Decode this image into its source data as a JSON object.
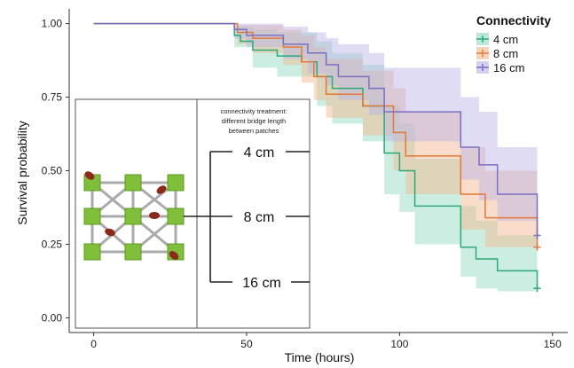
{
  "chart_data": {
    "type": "line",
    "step": true,
    "xlabel": "Time (hours)",
    "ylabel": "Survival probability",
    "xlim": [
      -8,
      155
    ],
    "ylim": [
      -0.05,
      1.05
    ],
    "xticks": [
      0,
      50,
      100,
      150
    ],
    "yticks": [
      0.0,
      0.25,
      0.5,
      0.75,
      1.0
    ],
    "ytick_labels": [
      "0.00",
      "0.25",
      "0.50",
      "0.75",
      "1.00"
    ],
    "legend": {
      "title": "Connectivity",
      "position": "top-right"
    },
    "series": [
      {
        "name": "4 cm",
        "color": "#2ca87a",
        "band_color": "#8fd9bf",
        "points": [
          [
            0,
            1.0
          ],
          [
            46,
            1.0
          ],
          [
            46,
            0.96
          ],
          [
            48,
            0.96
          ],
          [
            48,
            0.94
          ],
          [
            52,
            0.94
          ],
          [
            52,
            0.91
          ],
          [
            60,
            0.91
          ],
          [
            60,
            0.89
          ],
          [
            68,
            0.89
          ],
          [
            68,
            0.87
          ],
          [
            73,
            0.87
          ],
          [
            73,
            0.82
          ],
          [
            78,
            0.82
          ],
          [
            78,
            0.78
          ],
          [
            88,
            0.78
          ],
          [
            88,
            0.72
          ],
          [
            95,
            0.72
          ],
          [
            95,
            0.56
          ],
          [
            100,
            0.56
          ],
          [
            100,
            0.5
          ],
          [
            105,
            0.5
          ],
          [
            105,
            0.38
          ],
          [
            120,
            0.38
          ],
          [
            120,
            0.24
          ],
          [
            125,
            0.24
          ],
          [
            125,
            0.2
          ],
          [
            132,
            0.2
          ],
          [
            132,
            0.16
          ],
          [
            145,
            0.16
          ],
          [
            145,
            0.1
          ]
        ],
        "upper": [
          [
            0,
            1.0
          ],
          [
            46,
            1.0
          ],
          [
            46,
            0.99
          ],
          [
            52,
            0.99
          ],
          [
            52,
            0.98
          ],
          [
            60,
            0.98
          ],
          [
            60,
            0.97
          ],
          [
            73,
            0.97
          ],
          [
            73,
            0.94
          ],
          [
            78,
            0.94
          ],
          [
            78,
            0.9
          ],
          [
            88,
            0.9
          ],
          [
            88,
            0.86
          ],
          [
            95,
            0.86
          ],
          [
            95,
            0.72
          ],
          [
            100,
            0.72
          ],
          [
            100,
            0.66
          ],
          [
            105,
            0.66
          ],
          [
            105,
            0.54
          ],
          [
            120,
            0.54
          ],
          [
            120,
            0.38
          ],
          [
            125,
            0.38
          ],
          [
            125,
            0.33
          ],
          [
            132,
            0.33
          ],
          [
            132,
            0.28
          ],
          [
            145,
            0.28
          ]
        ],
        "lower": [
          [
            0,
            1.0
          ],
          [
            46,
            1.0
          ],
          [
            46,
            0.92
          ],
          [
            52,
            0.92
          ],
          [
            52,
            0.85
          ],
          [
            60,
            0.85
          ],
          [
            60,
            0.82
          ],
          [
            73,
            0.82
          ],
          [
            73,
            0.72
          ],
          [
            78,
            0.72
          ],
          [
            78,
            0.66
          ],
          [
            88,
            0.66
          ],
          [
            88,
            0.6
          ],
          [
            95,
            0.6
          ],
          [
            95,
            0.42
          ],
          [
            100,
            0.42
          ],
          [
            100,
            0.36
          ],
          [
            105,
            0.36
          ],
          [
            105,
            0.25
          ],
          [
            120,
            0.25
          ],
          [
            120,
            0.14
          ],
          [
            125,
            0.14
          ],
          [
            125,
            0.1
          ],
          [
            132,
            0.1
          ],
          [
            132,
            0.09
          ],
          [
            145,
            0.09
          ]
        ],
        "end_marker": [
          145,
          0.1
        ]
      },
      {
        "name": "8 cm",
        "color": "#e07a3a",
        "band_color": "#f2b48a",
        "points": [
          [
            0,
            1.0
          ],
          [
            47,
            1.0
          ],
          [
            47,
            0.97
          ],
          [
            52,
            0.97
          ],
          [
            52,
            0.95
          ],
          [
            62,
            0.95
          ],
          [
            62,
            0.92
          ],
          [
            68,
            0.92
          ],
          [
            68,
            0.87
          ],
          [
            72,
            0.87
          ],
          [
            72,
            0.82
          ],
          [
            76,
            0.82
          ],
          [
            76,
            0.76
          ],
          [
            88,
            0.76
          ],
          [
            88,
            0.72
          ],
          [
            98,
            0.72
          ],
          [
            98,
            0.63
          ],
          [
            102,
            0.63
          ],
          [
            102,
            0.55
          ],
          [
            120,
            0.55
          ],
          [
            120,
            0.42
          ],
          [
            128,
            0.42
          ],
          [
            128,
            0.34
          ],
          [
            145,
            0.34
          ],
          [
            145,
            0.24
          ]
        ],
        "upper": [
          [
            0,
            1.0
          ],
          [
            47,
            1.0
          ],
          [
            47,
            0.995
          ],
          [
            62,
            0.995
          ],
          [
            62,
            0.98
          ],
          [
            68,
            0.98
          ],
          [
            68,
            0.96
          ],
          [
            72,
            0.96
          ],
          [
            72,
            0.92
          ],
          [
            76,
            0.92
          ],
          [
            76,
            0.88
          ],
          [
            88,
            0.88
          ],
          [
            88,
            0.84
          ],
          [
            98,
            0.84
          ],
          [
            98,
            0.78
          ],
          [
            102,
            0.78
          ],
          [
            102,
            0.7
          ],
          [
            120,
            0.7
          ],
          [
            120,
            0.58
          ],
          [
            128,
            0.58
          ],
          [
            128,
            0.5
          ],
          [
            145,
            0.5
          ]
        ],
        "lower": [
          [
            0,
            1.0
          ],
          [
            47,
            1.0
          ],
          [
            47,
            0.93
          ],
          [
            52,
            0.93
          ],
          [
            52,
            0.9
          ],
          [
            62,
            0.9
          ],
          [
            62,
            0.86
          ],
          [
            68,
            0.86
          ],
          [
            68,
            0.8
          ],
          [
            72,
            0.8
          ],
          [
            72,
            0.74
          ],
          [
            76,
            0.74
          ],
          [
            76,
            0.68
          ],
          [
            88,
            0.68
          ],
          [
            88,
            0.62
          ],
          [
            98,
            0.62
          ],
          [
            98,
            0.5
          ],
          [
            102,
            0.5
          ],
          [
            102,
            0.42
          ],
          [
            120,
            0.42
          ],
          [
            120,
            0.3
          ],
          [
            128,
            0.3
          ],
          [
            128,
            0.24
          ],
          [
            145,
            0.24
          ]
        ],
        "end_marker": [
          145,
          0.24
        ]
      },
      {
        "name": "16 cm",
        "color": "#7b6fc4",
        "band_color": "#b9b1e6",
        "points": [
          [
            0,
            1.0
          ],
          [
            46,
            1.0
          ],
          [
            46,
            0.98
          ],
          [
            50,
            0.98
          ],
          [
            50,
            0.96
          ],
          [
            62,
            0.96
          ],
          [
            62,
            0.93
          ],
          [
            70,
            0.93
          ],
          [
            70,
            0.9
          ],
          [
            76,
            0.9
          ],
          [
            76,
            0.86
          ],
          [
            80,
            0.86
          ],
          [
            80,
            0.82
          ],
          [
            90,
            0.82
          ],
          [
            90,
            0.78
          ],
          [
            95,
            0.78
          ],
          [
            95,
            0.7
          ],
          [
            120,
            0.7
          ],
          [
            120,
            0.58
          ],
          [
            126,
            0.58
          ],
          [
            126,
            0.52
          ],
          [
            132,
            0.52
          ],
          [
            132,
            0.42
          ],
          [
            145,
            0.42
          ],
          [
            145,
            0.28
          ]
        ],
        "upper": [
          [
            0,
            1.0
          ],
          [
            46,
            1.0
          ],
          [
            46,
            1.0
          ],
          [
            62,
            1.0
          ],
          [
            62,
            0.99
          ],
          [
            70,
            0.99
          ],
          [
            70,
            0.97
          ],
          [
            76,
            0.97
          ],
          [
            76,
            0.95
          ],
          [
            80,
            0.95
          ],
          [
            80,
            0.93
          ],
          [
            90,
            0.93
          ],
          [
            90,
            0.9
          ],
          [
            95,
            0.9
          ],
          [
            95,
            0.85
          ],
          [
            120,
            0.85
          ],
          [
            120,
            0.75
          ],
          [
            126,
            0.75
          ],
          [
            126,
            0.7
          ],
          [
            132,
            0.7
          ],
          [
            132,
            0.58
          ],
          [
            145,
            0.58
          ]
        ],
        "lower": [
          [
            0,
            1.0
          ],
          [
            46,
            1.0
          ],
          [
            46,
            0.95
          ],
          [
            50,
            0.95
          ],
          [
            50,
            0.92
          ],
          [
            62,
            0.92
          ],
          [
            62,
            0.88
          ],
          [
            70,
            0.88
          ],
          [
            70,
            0.83
          ],
          [
            76,
            0.83
          ],
          [
            76,
            0.79
          ],
          [
            80,
            0.79
          ],
          [
            80,
            0.74
          ],
          [
            90,
            0.74
          ],
          [
            90,
            0.69
          ],
          [
            95,
            0.69
          ],
          [
            95,
            0.6
          ],
          [
            120,
            0.6
          ],
          [
            120,
            0.47
          ],
          [
            126,
            0.47
          ],
          [
            126,
            0.4
          ],
          [
            132,
            0.4
          ],
          [
            132,
            0.33
          ],
          [
            145,
            0.33
          ]
        ],
        "end_marker": [
          145,
          0.28
        ]
      }
    ]
  },
  "inset": {
    "note_lines": [
      "connectivity treatment:",
      "different bridge length",
      "between patches"
    ],
    "labels": [
      "4 cm",
      "8 cm",
      "16 cm"
    ]
  }
}
